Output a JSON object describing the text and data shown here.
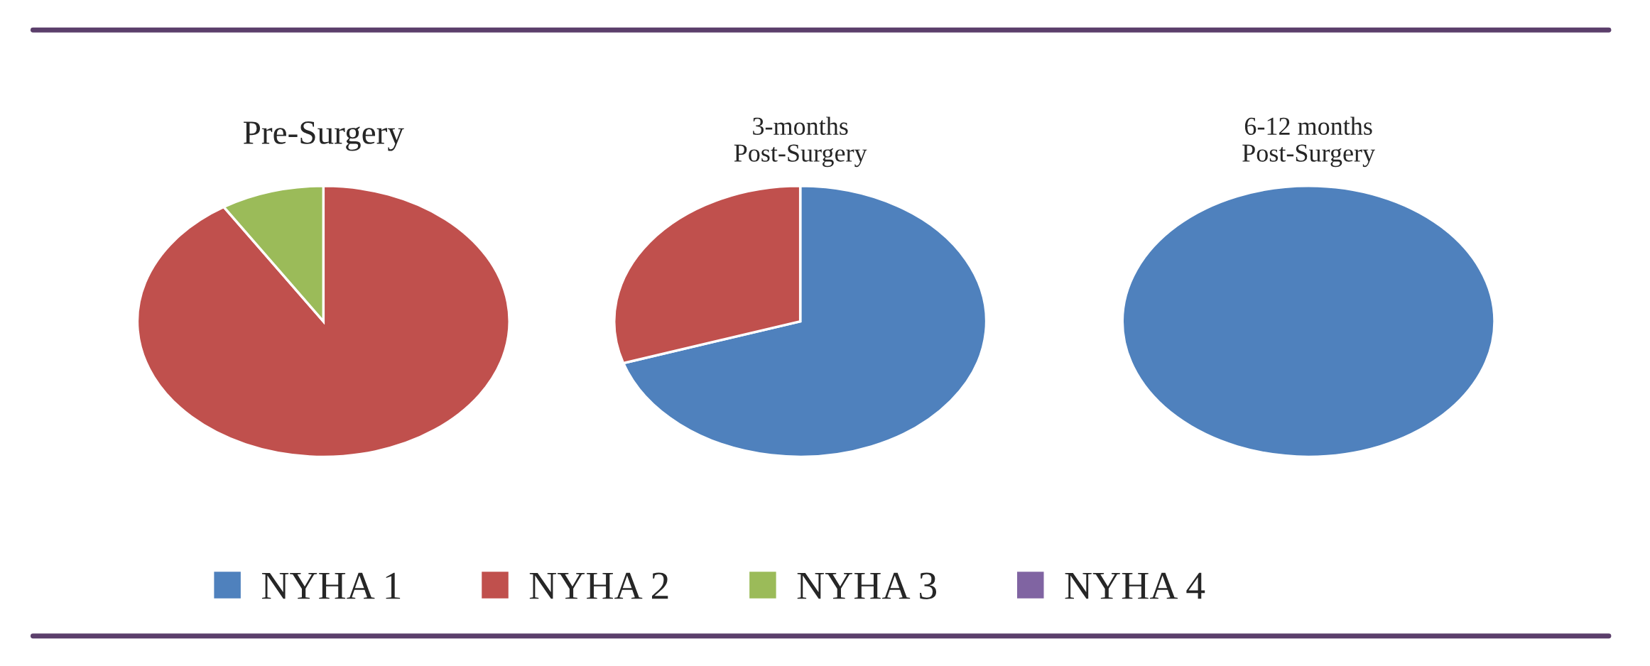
{
  "chart_data": [
    {
      "type": "pie",
      "title": "Pre-Surgery",
      "categories": [
        "NYHA 1",
        "NYHA 2",
        "NYHA 3",
        "NYHA 4"
      ],
      "values": [
        0,
        91,
        9,
        0
      ],
      "colors": [
        "#4f81bd",
        "#c0504d",
        "#9bbb59",
        "#8064a2"
      ],
      "legend": "bottom"
    },
    {
      "type": "pie",
      "title": "3-months\nPost-Surgery",
      "categories": [
        null,
        null,
        null,
        null
      ],
      "values": [
        70,
        30,
        0,
        0
      ],
      "colors": [
        "#4f81bd",
        "#c0504d",
        "#9bbb59",
        "#8064a2"
      ]
    },
    {
      "type": "pie",
      "title": "6-12 months\nPost-Surgery",
      "categories": [
        null,
        null,
        null,
        null
      ],
      "values": [
        100,
        0,
        0,
        0
      ],
      "colors": [
        "#4f81bd",
        "#c0504d",
        "#9bbb59",
        "#8064a2"
      ]
    }
  ]
}
